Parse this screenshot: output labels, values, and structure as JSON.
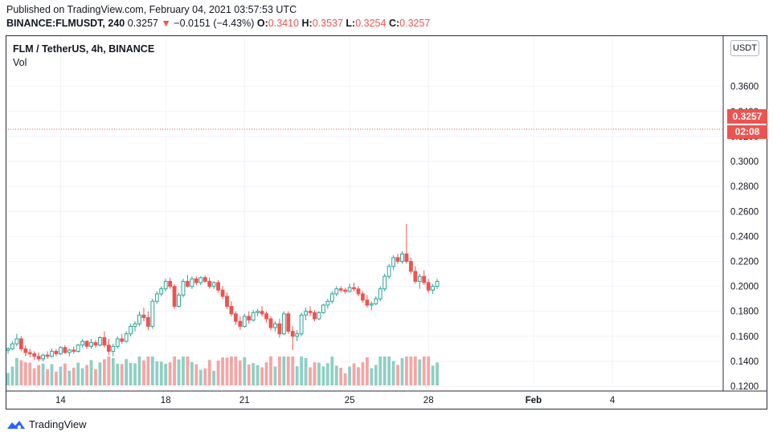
{
  "header": {
    "published": "Published on TradingView.com, February 04, 2021 03:57:53 UTC",
    "symbol": "BINANCE:FLMUSDT, 240",
    "price": "0.3257",
    "arrow": "▼",
    "change": "−0.0151 (−4.43%)",
    "open_label": "O:",
    "open": "0.3410",
    "high_label": "H:",
    "high": "0.3537",
    "low_label": "L:",
    "low": "0.3254",
    "close_label": "C:",
    "close": "0.3257"
  },
  "legend": {
    "title": "FLM / TetherUS, 4h, BINANCE",
    "volume": "Vol"
  },
  "axis": {
    "unit": "USDT",
    "last_price": "0.3257",
    "countdown": "02:08"
  },
  "footer": {
    "brand": "TradingView"
  },
  "colors": {
    "up": "#26a69a",
    "down": "#ef5350",
    "vol_up": "#8fcfc4",
    "vol_down": "#f4a6a4"
  },
  "chart_data": {
    "type": "candlestick",
    "y_ticks": [
      "0.3600",
      "0.3400",
      "0.3200",
      "0.3000",
      "0.2800",
      "0.2600",
      "0.2400",
      "0.2200",
      "0.2000",
      "0.1800",
      "0.1600",
      "0.1400",
      "0.1200"
    ],
    "ylim": [
      0.113,
      0.372
    ],
    "x_ticks": [
      {
        "label": "14",
        "index": 12
      },
      {
        "label": "18",
        "index": 36
      },
      {
        "label": "21",
        "index": 54
      },
      {
        "label": "25",
        "index": 78
      },
      {
        "label": "28",
        "index": 96
      },
      {
        "label": "Feb",
        "index": 120,
        "bold": true
      },
      {
        "label": "4",
        "index": 138
      }
    ],
    "last_price": 0.3257,
    "candles": [
      [
        0.1488,
        0.1512,
        0.146,
        0.15
      ],
      [
        0.15,
        0.156,
        0.149,
        0.154
      ],
      [
        0.154,
        0.162,
        0.152,
        0.158
      ],
      [
        0.158,
        0.16,
        0.148,
        0.15
      ],
      [
        0.15,
        0.153,
        0.144,
        0.147
      ],
      [
        0.147,
        0.15,
        0.143,
        0.146
      ],
      [
        0.146,
        0.148,
        0.141,
        0.144
      ],
      [
        0.144,
        0.147,
        0.14,
        0.142
      ],
      [
        0.142,
        0.146,
        0.14,
        0.145
      ],
      [
        0.145,
        0.148,
        0.142,
        0.144
      ],
      [
        0.144,
        0.15,
        0.143,
        0.148
      ],
      [
        0.148,
        0.15,
        0.144,
        0.146
      ],
      [
        0.146,
        0.152,
        0.145,
        0.151
      ],
      [
        0.151,
        0.153,
        0.146,
        0.147
      ],
      [
        0.147,
        0.15,
        0.144,
        0.149
      ],
      [
        0.149,
        0.152,
        0.146,
        0.148
      ],
      [
        0.148,
        0.154,
        0.147,
        0.153
      ],
      [
        0.153,
        0.158,
        0.151,
        0.156
      ],
      [
        0.156,
        0.157,
        0.15,
        0.152
      ],
      [
        0.152,
        0.158,
        0.15,
        0.155
      ],
      [
        0.155,
        0.157,
        0.151,
        0.153
      ],
      [
        0.153,
        0.16,
        0.152,
        0.159
      ],
      [
        0.159,
        0.164,
        0.151,
        0.153
      ],
      [
        0.153,
        0.158,
        0.145,
        0.148
      ],
      [
        0.148,
        0.154,
        0.144,
        0.152
      ],
      [
        0.152,
        0.16,
        0.15,
        0.158
      ],
      [
        0.158,
        0.162,
        0.154,
        0.156
      ],
      [
        0.156,
        0.164,
        0.155,
        0.162
      ],
      [
        0.162,
        0.17,
        0.16,
        0.168
      ],
      [
        0.168,
        0.172,
        0.164,
        0.17
      ],
      [
        0.17,
        0.18,
        0.168,
        0.177
      ],
      [
        0.177,
        0.183,
        0.172,
        0.175
      ],
      [
        0.175,
        0.18,
        0.165,
        0.168
      ],
      [
        0.168,
        0.19,
        0.166,
        0.188
      ],
      [
        0.188,
        0.196,
        0.186,
        0.194
      ],
      [
        0.194,
        0.2,
        0.192,
        0.198
      ],
      [
        0.198,
        0.206,
        0.196,
        0.204
      ],
      [
        0.204,
        0.207,
        0.198,
        0.2
      ],
      [
        0.2,
        0.202,
        0.182,
        0.184
      ],
      [
        0.184,
        0.195,
        0.183,
        0.193
      ],
      [
        0.193,
        0.206,
        0.191,
        0.204
      ],
      [
        0.204,
        0.209,
        0.199,
        0.2
      ],
      [
        0.2,
        0.208,
        0.198,
        0.206
      ],
      [
        0.206,
        0.208,
        0.201,
        0.203
      ],
      [
        0.203,
        0.208,
        0.201,
        0.207
      ],
      [
        0.207,
        0.209,
        0.203,
        0.204
      ],
      [
        0.204,
        0.207,
        0.198,
        0.2
      ],
      [
        0.2,
        0.204,
        0.198,
        0.203
      ],
      [
        0.203,
        0.205,
        0.195,
        0.197
      ],
      [
        0.197,
        0.2,
        0.19,
        0.192
      ],
      [
        0.192,
        0.195,
        0.182,
        0.184
      ],
      [
        0.184,
        0.188,
        0.176,
        0.178
      ],
      [
        0.178,
        0.18,
        0.169,
        0.172
      ],
      [
        0.172,
        0.176,
        0.165,
        0.168
      ],
      [
        0.168,
        0.178,
        0.167,
        0.176
      ],
      [
        0.176,
        0.18,
        0.17,
        0.173
      ],
      [
        0.173,
        0.181,
        0.172,
        0.179
      ],
      [
        0.179,
        0.182,
        0.176,
        0.18
      ],
      [
        0.18,
        0.184,
        0.176,
        0.178
      ],
      [
        0.178,
        0.18,
        0.171,
        0.174
      ],
      [
        0.174,
        0.176,
        0.165,
        0.167
      ],
      [
        0.167,
        0.172,
        0.164,
        0.17
      ],
      [
        0.17,
        0.174,
        0.159,
        0.162
      ],
      [
        0.162,
        0.18,
        0.161,
        0.178
      ],
      [
        0.178,
        0.18,
        0.162,
        0.164
      ],
      [
        0.164,
        0.168,
        0.149,
        0.16
      ],
      [
        0.16,
        0.165,
        0.156,
        0.162
      ],
      [
        0.162,
        0.179,
        0.16,
        0.177
      ],
      [
        0.177,
        0.183,
        0.173,
        0.18
      ],
      [
        0.18,
        0.184,
        0.176,
        0.179
      ],
      [
        0.179,
        0.181,
        0.172,
        0.174
      ],
      [
        0.174,
        0.18,
        0.173,
        0.179
      ],
      [
        0.179,
        0.186,
        0.178,
        0.185
      ],
      [
        0.185,
        0.19,
        0.182,
        0.188
      ],
      [
        0.188,
        0.196,
        0.186,
        0.194
      ],
      [
        0.194,
        0.2,
        0.192,
        0.198
      ],
      [
        0.198,
        0.2,
        0.195,
        0.197
      ],
      [
        0.197,
        0.199,
        0.194,
        0.196
      ],
      [
        0.196,
        0.202,
        0.195,
        0.199
      ],
      [
        0.199,
        0.203,
        0.196,
        0.198
      ],
      [
        0.198,
        0.2,
        0.192,
        0.194
      ],
      [
        0.194,
        0.196,
        0.187,
        0.189
      ],
      [
        0.189,
        0.193,
        0.183,
        0.185
      ],
      [
        0.185,
        0.188,
        0.181,
        0.186
      ],
      [
        0.186,
        0.192,
        0.185,
        0.19
      ],
      [
        0.19,
        0.2,
        0.188,
        0.198
      ],
      [
        0.198,
        0.21,
        0.196,
        0.208
      ],
      [
        0.208,
        0.218,
        0.206,
        0.216
      ],
      [
        0.216,
        0.225,
        0.213,
        0.223
      ],
      [
        0.223,
        0.226,
        0.218,
        0.22
      ],
      [
        0.22,
        0.228,
        0.218,
        0.226
      ],
      [
        0.226,
        0.25,
        0.218,
        0.22
      ],
      [
        0.22,
        0.223,
        0.21,
        0.212
      ],
      [
        0.212,
        0.216,
        0.202,
        0.204
      ],
      [
        0.204,
        0.21,
        0.198,
        0.208
      ],
      [
        0.208,
        0.213,
        0.201,
        0.203
      ],
      [
        0.203,
        0.206,
        0.195,
        0.197
      ],
      [
        0.197,
        0.202,
        0.194,
        0.2
      ],
      [
        0.2,
        0.206,
        0.198,
        0.204
      ]
    ]
  }
}
